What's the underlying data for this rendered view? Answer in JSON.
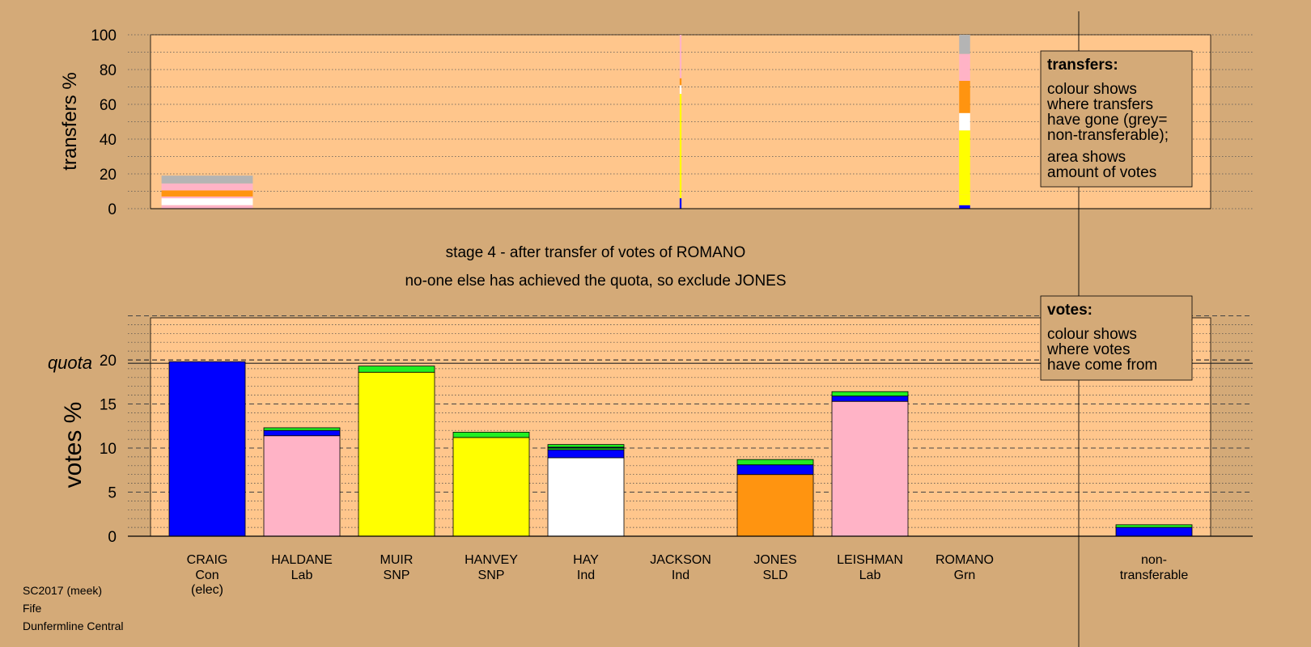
{
  "colors": {
    "background": "#d4aa78",
    "plot_bg": "#ffc68c",
    "Con": "#0000ff",
    "Lab": "#ffb3c6",
    "SNP": "#ffff00",
    "Ind": "#ffffff",
    "SLD": "#ff9410",
    "Grn": "#22ee22",
    "nontransferable": "#b4b4b4"
  },
  "headings": {
    "stage": "stage 4 - after transfer of votes of ROMANO",
    "note": "no-one else has achieved the quota, so exclude JONES"
  },
  "quota_label": "quota",
  "footer": [
    "SC2017 (meek)",
    "Fife",
    "Dunfermline Central"
  ],
  "legend_transfers": {
    "title": "transfers:",
    "lines1": [
      "colour shows",
      "where transfers",
      "have gone (grey=",
      "non-transferable);"
    ],
    "lines2": [
      "area shows",
      "amount of votes"
    ]
  },
  "legend_votes": {
    "title": "votes:",
    "lines": [
      "colour shows",
      "where votes",
      "have come from"
    ]
  },
  "chart_data": [
    {
      "type": "bar",
      "ylabel": "transfers %",
      "ylim": [
        0,
        100
      ],
      "yticks": [
        0,
        20,
        40,
        60,
        80,
        100
      ],
      "grid": true,
      "transfer_blocks": [
        {
          "column": "CRAIG",
          "width_share": 1.0,
          "segments": [
            {
              "to": "Lab",
              "value": 2.0
            },
            {
              "to": "Ind",
              "value": 4.0
            },
            {
              "to": "Lab",
              "value": 1.0
            },
            {
              "to": "SLD",
              "value": 3.5
            },
            {
              "to": "Lab",
              "value": 4.0
            },
            {
              "to": "nontransferable",
              "value": 4.5
            }
          ]
        },
        {
          "column": "JACKSON",
          "width_share": 0.02,
          "segments": [
            {
              "to": "Con",
              "value": 6.0
            },
            {
              "to": "SNP",
              "value": 60.0
            },
            {
              "to": "Ind",
              "value": 5.0
            },
            {
              "to": "SLD",
              "value": 4.0
            },
            {
              "to": "Lab",
              "value": 25.0
            }
          ]
        },
        {
          "column": "ROMANO",
          "width_share": 0.12,
          "segments": [
            {
              "to": "Con",
              "value": 2.0
            },
            {
              "to": "SNP",
              "value": 6.0
            },
            {
              "to": "SNP",
              "value": 37.0
            },
            {
              "to": "Ind",
              "value": 10.0
            },
            {
              "to": "SLD",
              "value": 18.5
            },
            {
              "to": "Lab",
              "value": 15.5
            },
            {
              "to": "nontransferable",
              "value": 11.0
            }
          ]
        }
      ]
    },
    {
      "type": "bar",
      "ylabel": "votes %",
      "ylim": [
        0,
        25
      ],
      "yticks": [
        0,
        5,
        10,
        15,
        20
      ],
      "quota": 19.8,
      "grid": true,
      "categories": [
        {
          "name": "CRAIG",
          "party": "Con",
          "note": "(elec)"
        },
        {
          "name": "HALDANE",
          "party": "Lab"
        },
        {
          "name": "MUIR",
          "party": "SNP"
        },
        {
          "name": "HANVEY",
          "party": "SNP"
        },
        {
          "name": "HAY",
          "party": "Ind"
        },
        {
          "name": "JACKSON",
          "party": "Ind"
        },
        {
          "name": "JONES",
          "party": "SLD"
        },
        {
          "name": "LEISHMAN",
          "party": "Lab"
        },
        {
          "name": "ROMANO",
          "party": "Grn"
        },
        {
          "name": "non-",
          "party": "transferable"
        }
      ],
      "stacks": [
        [
          {
            "from": "Con",
            "value": 19.8
          }
        ],
        [
          {
            "from": "Lab",
            "value": 11.4
          },
          {
            "from": "Con",
            "value": 0.6
          },
          {
            "from": "Grn",
            "value": 0.3
          }
        ],
        [
          {
            "from": "SNP",
            "value": 18.6
          },
          {
            "from": "Grn",
            "value": 0.7
          }
        ],
        [
          {
            "from": "SNP",
            "value": 11.2
          },
          {
            "from": "Grn",
            "value": 0.6
          }
        ],
        [
          {
            "from": "Ind",
            "value": 8.9
          },
          {
            "from": "Con",
            "value": 0.9
          },
          {
            "from": "Grn",
            "value": 0.2
          },
          {
            "from": "Con",
            "value": 0.1
          },
          {
            "from": "Grn",
            "value": 0.3
          }
        ],
        [],
        [
          {
            "from": "SLD",
            "value": 7.0
          },
          {
            "from": "Con",
            "value": 1.1
          },
          {
            "from": "Grn",
            "value": 0.6
          }
        ],
        [
          {
            "from": "Lab",
            "value": 15.3
          },
          {
            "from": "Con",
            "value": 0.6
          },
          {
            "from": "Grn",
            "value": 0.5
          }
        ],
        [],
        [
          {
            "from": "Con",
            "value": 1.0
          },
          {
            "from": "Grn",
            "value": 0.3
          }
        ]
      ]
    }
  ]
}
